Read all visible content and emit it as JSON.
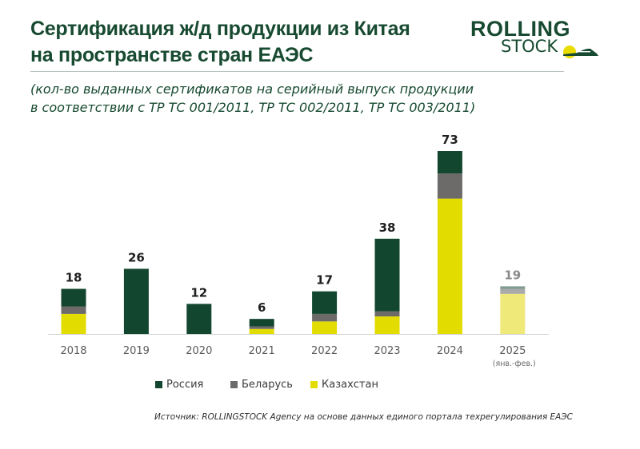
{
  "header": {
    "title_lines": [
      "Сертификация ж/д продукции из Китая",
      "на пространстве стран ЕАЭС"
    ],
    "subtitle_lines": [
      "(кол-во выданных сертификатов на серийный выпуск продукции",
      "в соответствии с ТР ТС 001/2011, ТР ТС 002/2011, ТР ТС 003/2011)"
    ]
  },
  "logo": {
    "line1": "ROLLING",
    "line2": "STOCK",
    "icon": "sun-train-icon",
    "colors": {
      "text": "#174a30",
      "sun": "#e8dc00",
      "train": "#174a30"
    }
  },
  "chart_data": {
    "type": "bar",
    "stacked": true,
    "title": "Сертификация ж/д продукции из Китая на пространстве стран ЕАЭС",
    "subtitle": "(кол-во выданных сертификатов на серийный выпуск продукции в соответствии с ТР ТС 001/2011, ТР ТС 002/2011, ТР ТС 003/2011)",
    "xlabel": "",
    "ylabel": "",
    "categories": [
      "2018",
      "2019",
      "2020",
      "2021",
      "2022",
      "2023",
      "2024",
      "2025"
    ],
    "category_notes": [
      "",
      "",
      "",
      "",
      "",
      "",
      "",
      "(янв.-фев.)"
    ],
    "series": [
      {
        "name": "Казахстан",
        "color": "#e2dc00",
        "faded_color": "#efe97a",
        "values": [
          8,
          0,
          0,
          2,
          5,
          7,
          54,
          16
        ]
      },
      {
        "name": "Беларусь",
        "color": "#6d6a6a",
        "faded_color": "#a9aaaa",
        "values": [
          3,
          0,
          0,
          1,
          3,
          2,
          10,
          2
        ]
      },
      {
        "name": "Россия",
        "color": "#13462f",
        "faded_color": "#7f9c91",
        "values": [
          7,
          26,
          12,
          3,
          9,
          29,
          9,
          1
        ]
      }
    ],
    "totals": [
      18,
      26,
      12,
      6,
      17,
      38,
      73,
      19
    ],
    "partial_period": [
      false,
      false,
      false,
      false,
      false,
      false,
      false,
      true
    ],
    "ylim": [
      0,
      73
    ],
    "grid": false,
    "legend": {
      "placement": "bottom-center",
      "order": [
        "Россия",
        "Беларусь",
        "Казахстан"
      ]
    }
  },
  "legend": {
    "items": [
      {
        "label": "Россия",
        "color": "#13462f"
      },
      {
        "label": "Беларусь",
        "color": "#6d6a6a"
      },
      {
        "label": "Казахстан",
        "color": "#e2dc00"
      }
    ]
  },
  "footer": {
    "source": "Источник: ROLLINGSTOCK Agency на основе данных единого портала техрегулирования ЕАЭС"
  }
}
